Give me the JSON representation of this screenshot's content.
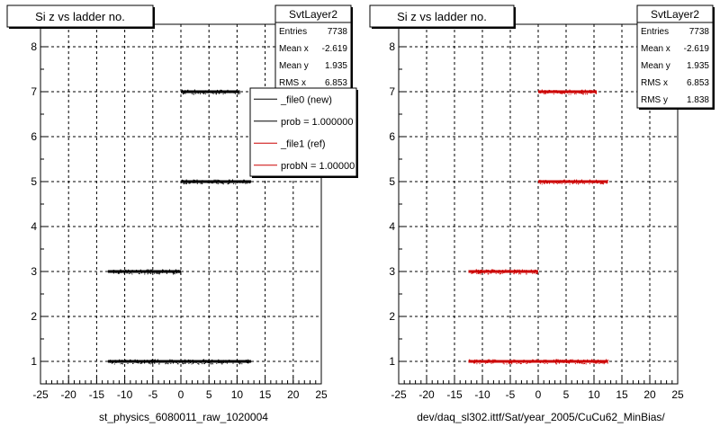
{
  "chart_data": [
    {
      "type": "scatter",
      "title": "Si z vs ladder no.",
      "xlabel": "st_physics_6080011_raw_1020004",
      "ylabel": "",
      "xlim": [
        -25,
        25
      ],
      "ylim": [
        0.5,
        8.5
      ],
      "xticks": [
        -25,
        -20,
        -15,
        -10,
        -5,
        0,
        5,
        10,
        15,
        20,
        25
      ],
      "yticks": [
        1,
        2,
        3,
        4,
        5,
        6,
        7,
        8
      ],
      "grid": true,
      "series": [
        {
          "name": "_file0 (new)",
          "color": "#000000",
          "bands": [
            {
              "y": 1,
              "x": [
                -13,
                12.5
              ]
            },
            {
              "y": 3,
              "x": [
                -13,
                0
              ]
            },
            {
              "y": 5,
              "x": [
                0,
                12.5
              ]
            },
            {
              "y": 7,
              "x": [
                0,
                10.5
              ]
            }
          ]
        }
      ],
      "stats": {
        "title": "SvtLayer2",
        "rows": [
          {
            "label": "Entries",
            "value": "7738"
          },
          {
            "label": "Mean x",
            "value": "-2.619"
          },
          {
            "label": "Mean y",
            "value": "1.935"
          },
          {
            "label": "RMS x",
            "value": "6.853"
          }
        ]
      },
      "legend": {
        "placement": "top-right",
        "entries": [
          {
            "label": "_file0 (new)",
            "color": "#000000"
          },
          {
            "label": "prob = 1.000000",
            "color": "#000000"
          },
          {
            "label": "_file1 (ref)",
            "color": "#cc0000"
          },
          {
            "label": "probN = 1.000000",
            "color": "#cc0000"
          }
        ]
      }
    },
    {
      "type": "scatter",
      "title": "Si z vs ladder no.",
      "xlabel": "dev/daq_sl302.ittf/Sat/year_2005/CuCu62_MinBias/",
      "ylabel": "",
      "xlim": [
        -25,
        25
      ],
      "ylim": [
        0.5,
        8.5
      ],
      "xticks": [
        -25,
        -20,
        -15,
        -10,
        -5,
        0,
        5,
        10,
        15,
        20,
        25
      ],
      "yticks": [
        1,
        2,
        3,
        4,
        5,
        6,
        7,
        8
      ],
      "grid": true,
      "series": [
        {
          "name": "_file1 (ref)",
          "color": "#cc0000",
          "bands": [
            {
              "y": 1,
              "x": [
                -12.5,
                12.5
              ]
            },
            {
              "y": 3,
              "x": [
                -12.5,
                0
              ]
            },
            {
              "y": 5,
              "x": [
                0,
                12.5
              ]
            },
            {
              "y": 7,
              "x": [
                0,
                10.5
              ]
            }
          ]
        }
      ],
      "stats": {
        "title": "SvtLayer2",
        "rows": [
          {
            "label": "Entries",
            "value": "7738"
          },
          {
            "label": "Mean x",
            "value": "-2.619"
          },
          {
            "label": "Mean y",
            "value": "1.935"
          },
          {
            "label": "RMS x",
            "value": "6.853"
          },
          {
            "label": "RMS y",
            "value": "1.838"
          }
        ]
      }
    }
  ]
}
